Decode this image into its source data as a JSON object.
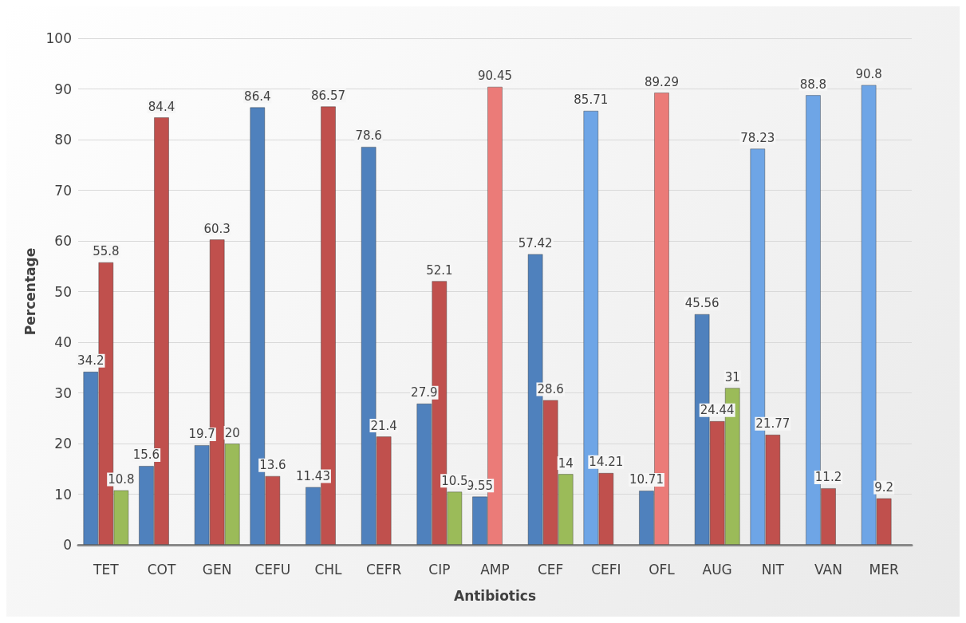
{
  "chart_data": {
    "type": "bar",
    "xlabel": "Antibiotics",
    "ylabel": "Percentage",
    "categories": [
      "TET",
      "COT",
      "GEN",
      "CEFU",
      "CHL",
      "CEFR",
      "CIP",
      "AMP",
      "CEF",
      "CEFI",
      "OFL",
      "AUG",
      "NIT",
      "VAN",
      "MER"
    ],
    "series": [
      {
        "color": "#4f81bd",
        "colors": [
          "#4f81bd",
          "#4f81bd",
          "#4f81bd",
          "#4f81bd",
          "#4f81bd",
          "#4f81bd",
          "#4f81bd",
          "#4f81bd",
          "#4f81bd",
          "#6ea5e6",
          "#4f81bd",
          "#4f81bd",
          "#6ea5e6",
          "#6ea5e6",
          "#6ea5e6"
        ],
        "values": [
          34.2,
          15.6,
          19.7,
          86.4,
          11.43,
          78.6,
          27.9,
          9.55,
          57.42,
          85.71,
          10.71,
          45.56,
          78.23,
          88.8,
          90.8
        ]
      },
      {
        "color": "#c0504d",
        "colors": [
          "#c0504d",
          "#c0504d",
          "#c0504d",
          "#c0504d",
          "#c0504d",
          "#c0504d",
          "#c0504d",
          "#eb7b78",
          "#c0504d",
          "#c0504d",
          "#eb7b78",
          "#c0504d",
          "#c0504d",
          "#c0504d",
          "#c0504d"
        ],
        "values": [
          55.8,
          84.4,
          60.3,
          13.6,
          86.57,
          21.4,
          52.1,
          90.45,
          28.6,
          14.21,
          89.29,
          24.44,
          21.77,
          11.2,
          9.2
        ]
      },
      {
        "color": "#9bbb59",
        "values": [
          10.8,
          null,
          20,
          null,
          null,
          null,
          10.5,
          null,
          14,
          null,
          null,
          31,
          null,
          null,
          null
        ]
      }
    ],
    "ylim": [
      0,
      100
    ],
    "yticks": [
      0,
      10,
      20,
      30,
      40,
      50,
      60,
      70,
      80,
      90,
      100
    ],
    "grid": "y",
    "data_labels": true
  }
}
